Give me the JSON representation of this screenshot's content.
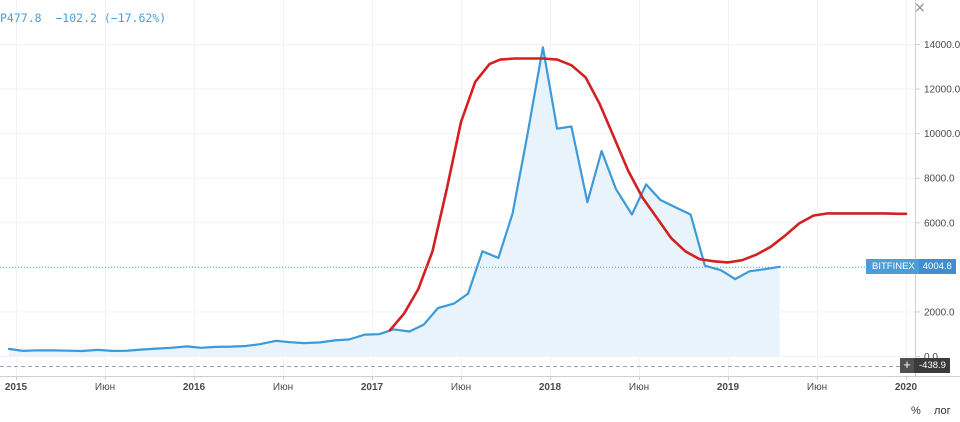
{
  "legend": {
    "ohlc_text": "Р477.8  −102.2 (−17.62%)"
  },
  "close_glyph": "×",
  "price_flag": {
    "exchange": "BITFINEX",
    "value": "4004.8"
  },
  "neg_flag": {
    "plus": "+",
    "value": "-438.9"
  },
  "controls": {
    "percent": "%",
    "log": "лог"
  },
  "chart_data": {
    "type": "line",
    "ylim": [
      -600,
      15300
    ],
    "y_ticks": [
      "14000.0",
      "12000.0",
      "10000.0",
      "8000.0",
      "6000.0",
      "4000.0",
      "2000.0",
      "0.0"
    ],
    "y_tick_values": [
      14000,
      12000,
      10000,
      8000,
      6000,
      4000,
      2000,
      0
    ],
    "x_ticks": [
      {
        "label": "2015",
        "t": 2015.0,
        "bold": true
      },
      {
        "label": "Июн",
        "t": 2015.5,
        "bold": false
      },
      {
        "label": "2016",
        "t": 2016.0,
        "bold": true
      },
      {
        "label": "Июн",
        "t": 2016.5,
        "bold": false
      },
      {
        "label": "2017",
        "t": 2017.0,
        "bold": true
      },
      {
        "label": "Июн",
        "t": 2017.5,
        "bold": false
      },
      {
        "label": "2018",
        "t": 2018.0,
        "bold": true
      },
      {
        "label": "Июн",
        "t": 2018.5,
        "bold": false
      },
      {
        "label": "2019",
        "t": 2019.0,
        "bold": true
      },
      {
        "label": "Июн",
        "t": 2019.5,
        "bold": false
      },
      {
        "label": "2020",
        "t": 2020.0,
        "bold": true
      }
    ],
    "xlim": [
      2015.0,
      2020.0
    ],
    "price_line_value": 4004.8,
    "zero_line_value": -438.9,
    "series": [
      {
        "color": "#3d9ad8",
        "fill": "#e9f3fc",
        "t": [
          2014.96,
          2015.04,
          2015.12,
          2015.21,
          2015.29,
          2015.37,
          2015.46,
          2015.54,
          2015.62,
          2015.71,
          2015.79,
          2015.87,
          2015.96,
          2016.04,
          2016.12,
          2016.21,
          2016.29,
          2016.37,
          2016.46,
          2016.54,
          2016.62,
          2016.71,
          2016.79,
          2016.87,
          2016.96,
          2017.04,
          2017.12,
          2017.21,
          2017.29,
          2017.37,
          2017.46,
          2017.54,
          2017.62,
          2017.71,
          2017.79,
          2017.87,
          2017.96,
          2018.04,
          2018.12,
          2018.21,
          2018.29,
          2018.37,
          2018.46,
          2018.54,
          2018.62,
          2018.71,
          2018.79,
          2018.87,
          2018.96,
          2019.04,
          2019.12,
          2019.21,
          2019.29
        ],
        "y": [
          320,
          230,
          255,
          250,
          240,
          225,
          275,
          230,
          235,
          290,
          330,
          370,
          430,
          370,
          410,
          420,
          450,
          530,
          680,
          620,
          580,
          610,
          700,
          740,
          960,
          980,
          1200,
          1100,
          1400,
          2150,
          2350,
          2800,
          4700,
          4400,
          6400,
          9800,
          13850,
          10200,
          10300,
          6900,
          9200,
          7500,
          6350,
          7700,
          7000,
          6650,
          6350,
          4050,
          3850,
          3450,
          3800,
          3900,
          4004.8
        ]
      },
      {
        "color": "#d32020",
        "t": [
          2017.1,
          2017.18,
          2017.26,
          2017.34,
          2017.42,
          2017.5,
          2017.58,
          2017.66,
          2017.72,
          2017.8,
          2017.88,
          2017.96,
          2018.04,
          2018.12,
          2018.2,
          2018.28,
          2018.36,
          2018.44,
          2018.52,
          2018.6,
          2018.68,
          2018.76,
          2018.84,
          2018.92,
          2019.0,
          2019.08,
          2019.16,
          2019.24,
          2019.32,
          2019.4,
          2019.48,
          2019.56,
          2019.64,
          2019.72,
          2019.8,
          2019.88,
          2019.96,
          2020.0
        ],
        "y": [
          1150,
          1900,
          3000,
          4700,
          7500,
          10500,
          12300,
          13100,
          13300,
          13350,
          13350,
          13350,
          13300,
          13050,
          12500,
          11300,
          9800,
          8300,
          7100,
          6200,
          5300,
          4700,
          4350,
          4250,
          4200,
          4300,
          4550,
          4900,
          5400,
          5950,
          6300,
          6400,
          6400,
          6400,
          6400,
          6400,
          6380,
          6380
        ]
      }
    ]
  }
}
